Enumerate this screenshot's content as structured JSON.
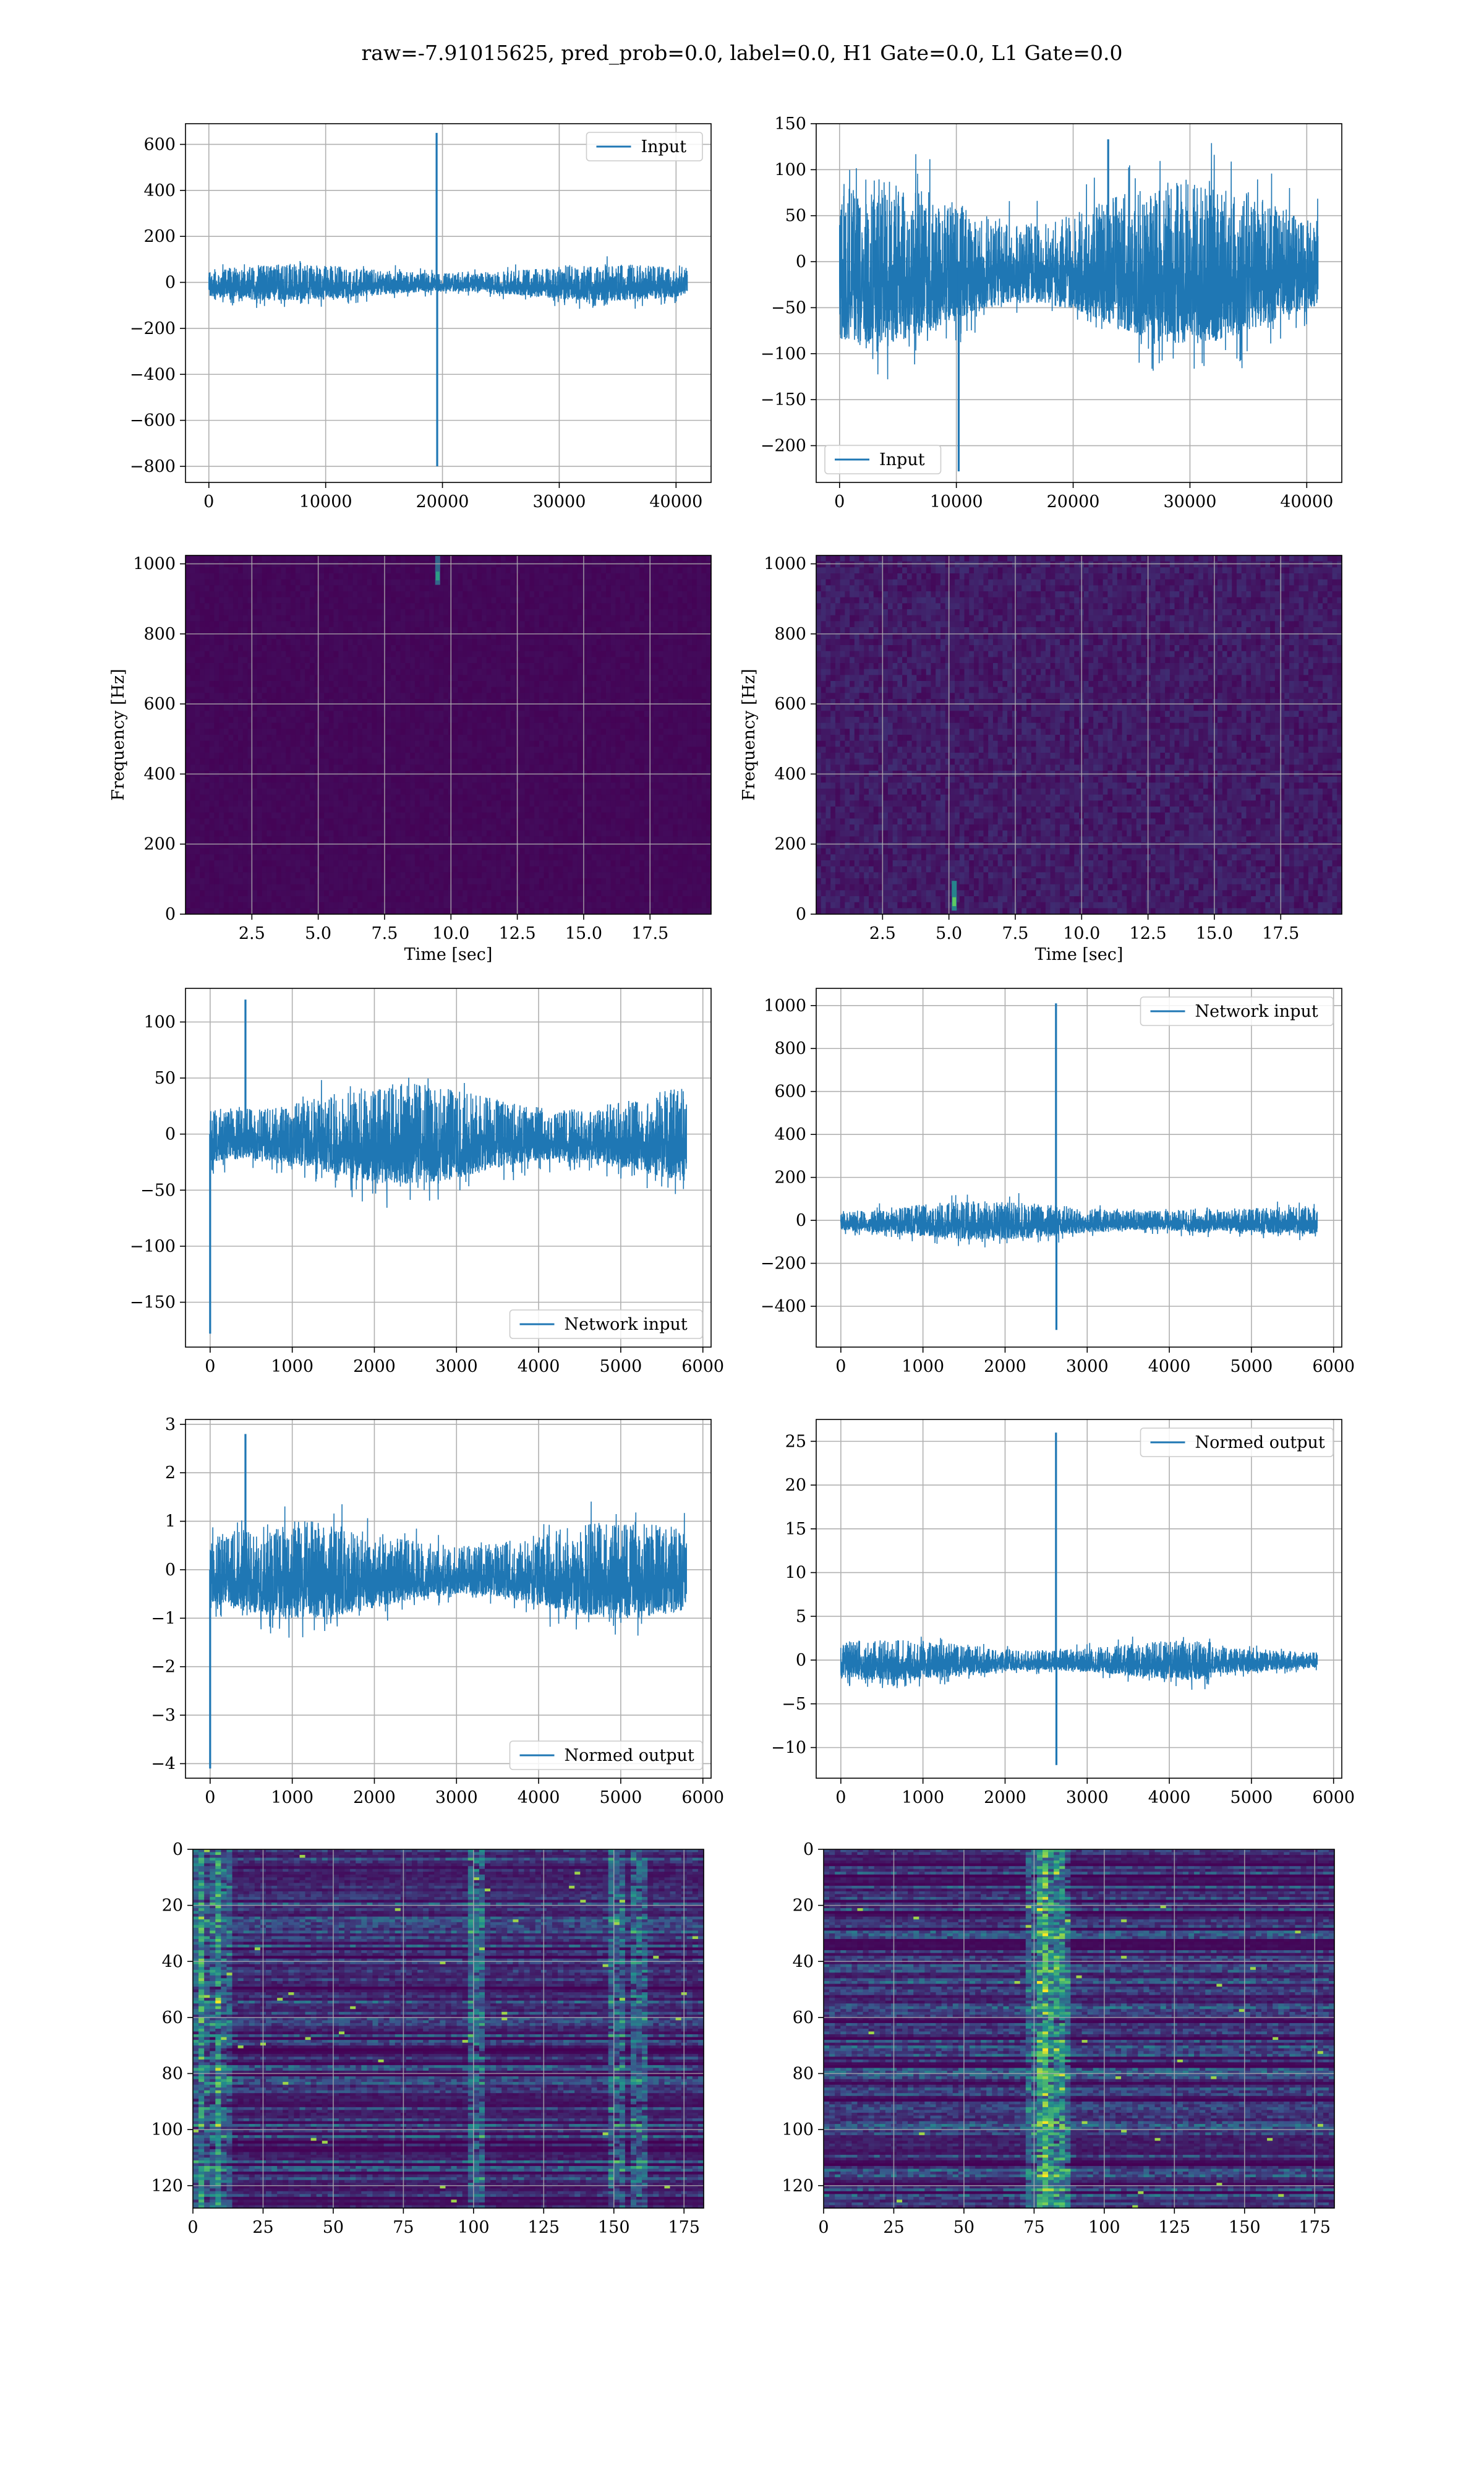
{
  "figure": {
    "title": "raw=-7.91015625, pred_prob=0.0, label=0.0, H1 Gate=0.0, L1 Gate=0.0"
  },
  "colors": {
    "line": "#1f77b4",
    "grid": "#b0b0b0",
    "viridis_low": "#440154",
    "viridis_mid": "#21918c",
    "viridis_high": "#fde725"
  },
  "chart_data": [
    {
      "type": "line",
      "name": "input-left",
      "series": [
        {
          "name": "Input",
          "x_range": [
            0,
            40960
          ],
          "noise_amplitude": 80,
          "spikes": [
            {
              "x": 19500,
              "y": 650
            },
            {
              "x": 19550,
              "y": -800
            }
          ]
        }
      ],
      "xlim": [
        -2000,
        43000
      ],
      "ylim": [
        -870,
        690
      ],
      "xticks": [
        0,
        10000,
        20000,
        30000,
        40000
      ],
      "yticks": [
        600,
        400,
        200,
        0,
        -200,
        -400,
        -600,
        -800
      ],
      "ytick_labels": [
        "600",
        "400",
        "200",
        "0",
        "−200",
        "−400",
        "−600",
        "−800"
      ],
      "legend": "top-right",
      "grid": true
    },
    {
      "type": "line",
      "name": "input-right",
      "series": [
        {
          "name": "Input",
          "x_range": [
            0,
            40960
          ],
          "noise_amplitude": 90,
          "spikes": [
            {
              "x": 10200,
              "y": -228
            },
            {
              "x": 23000,
              "y": 133
            }
          ]
        }
      ],
      "xlim": [
        -2000,
        43000
      ],
      "ylim": [
        -240,
        150
      ],
      "xticks": [
        0,
        10000,
        20000,
        30000,
        40000
      ],
      "yticks": [
        150,
        100,
        50,
        0,
        -50,
        -100,
        -150,
        -200
      ],
      "ytick_labels": [
        "150",
        "100",
        "50",
        "0",
        "−50",
        "−100",
        "−150",
        "−200"
      ],
      "legend": "bottom-left",
      "grid": true
    },
    {
      "type": "heatmap",
      "name": "spectrogram-left",
      "xlabel": "Time [sec]",
      "ylabel": "Frequency [Hz]",
      "xlim": [
        0,
        19.8
      ],
      "ylim": [
        0,
        1024
      ],
      "xticks": [
        2.5,
        5.0,
        7.5,
        10.0,
        12.5,
        15.0,
        17.5
      ],
      "yticks": [
        0,
        200,
        400,
        600,
        800,
        1000
      ],
      "background_level": 0.02,
      "hotspots": [
        {
          "time": 9.5,
          "freq_from": 940,
          "freq_to": 1024,
          "level": 0.55
        }
      ],
      "grid": true
    },
    {
      "type": "heatmap",
      "name": "spectrogram-right",
      "xlabel": "Time [sec]",
      "ylabel": "Frequency [Hz]",
      "xlim": [
        0,
        19.8
      ],
      "ylim": [
        0,
        1024
      ],
      "xticks": [
        2.5,
        5.0,
        7.5,
        10.0,
        12.5,
        15.0,
        17.5
      ],
      "yticks": [
        0,
        200,
        400,
        600,
        800,
        1000
      ],
      "background_level": 0.08,
      "hotspots": [
        {
          "time": 5.2,
          "freq_from": 10,
          "freq_to": 95,
          "level": 0.75
        }
      ],
      "grid": true
    },
    {
      "type": "line",
      "name": "network-input-left",
      "series": [
        {
          "name": "Network input",
          "x_range": [
            0,
            5800
          ],
          "noise_amplitude": 45,
          "spikes": [
            {
              "x": 0,
              "y": -178
            },
            {
              "x": 430,
              "y": 120
            }
          ]
        }
      ],
      "xlim": [
        -300,
        6100
      ],
      "ylim": [
        -190,
        130
      ],
      "xticks": [
        0,
        1000,
        2000,
        3000,
        4000,
        5000,
        6000
      ],
      "yticks": [
        100,
        50,
        0,
        -50,
        -100,
        -150
      ],
      "ytick_labels": [
        "100",
        "50",
        "0",
        "−50",
        "−100",
        "−150"
      ],
      "legend": "bottom-right",
      "grid": true
    },
    {
      "type": "line",
      "name": "network-input-right",
      "series": [
        {
          "name": "Network input",
          "x_range": [
            0,
            5800
          ],
          "noise_amplitude": 90,
          "spikes": [
            {
              "x": 2620,
              "y": 1010
            },
            {
              "x": 2625,
              "y": -510
            }
          ]
        }
      ],
      "xlim": [
        -300,
        6100
      ],
      "ylim": [
        -590,
        1080
      ],
      "xticks": [
        0,
        1000,
        2000,
        3000,
        4000,
        5000,
        6000
      ],
      "yticks": [
        1000,
        800,
        600,
        400,
        200,
        0,
        -200,
        -400
      ],
      "ytick_labels": [
        "1000",
        "800",
        "600",
        "400",
        "200",
        "0",
        "−200",
        "−400"
      ],
      "legend": "top-right",
      "grid": true
    },
    {
      "type": "line",
      "name": "normed-output-left",
      "series": [
        {
          "name": "Normed output",
          "x_range": [
            0,
            5800
          ],
          "noise_amplitude": 1.0,
          "spikes": [
            {
              "x": 0,
              "y": -4.1
            },
            {
              "x": 430,
              "y": 2.8
            }
          ]
        }
      ],
      "xlim": [
        -300,
        6100
      ],
      "ylim": [
        -4.3,
        3.1
      ],
      "xticks": [
        0,
        1000,
        2000,
        3000,
        4000,
        5000,
        6000
      ],
      "yticks": [
        3,
        2,
        1,
        0,
        -1,
        -2,
        -3,
        -4
      ],
      "ytick_labels": [
        "3",
        "2",
        "1",
        "0",
        "−1",
        "−2",
        "−3",
        "−4"
      ],
      "legend": "bottom-right",
      "grid": true
    },
    {
      "type": "line",
      "name": "normed-output-right",
      "series": [
        {
          "name": "Normed output",
          "x_range": [
            0,
            5800
          ],
          "noise_amplitude": 2.3,
          "spikes": [
            {
              "x": 2620,
              "y": 26
            },
            {
              "x": 2625,
              "y": -12
            }
          ]
        }
      ],
      "xlim": [
        -300,
        6100
      ],
      "ylim": [
        -13.5,
        27.5
      ],
      "xticks": [
        0,
        1000,
        2000,
        3000,
        4000,
        5000,
        6000
      ],
      "yticks": [
        25,
        20,
        15,
        10,
        5,
        0,
        -5,
        -10
      ],
      "ytick_labels": [
        "25",
        "20",
        "15",
        "10",
        "5",
        "0",
        "−5",
        "−10"
      ],
      "legend": "top-right",
      "grid": true
    },
    {
      "type": "heatmap",
      "name": "feature-map-left",
      "xlim": [
        0,
        182
      ],
      "ylim": [
        128,
        0
      ],
      "xticks": [
        0,
        25,
        50,
        75,
        100,
        125,
        150,
        175
      ],
      "yticks": [
        0,
        20,
        40,
        60,
        80,
        100,
        120
      ],
      "hot_columns": [
        0,
        5,
        10,
        100,
        150,
        158
      ],
      "grid": true
    },
    {
      "type": "heatmap",
      "name": "feature-map-right",
      "xlim": [
        0,
        182
      ],
      "ylim": [
        128,
        0
      ],
      "xticks": [
        0,
        25,
        50,
        75,
        100,
        125,
        150,
        175
      ],
      "yticks": [
        0,
        20,
        40,
        60,
        80,
        100,
        120
      ],
      "hot_columns": [
        75,
        78,
        81,
        84
      ],
      "grid": true
    }
  ]
}
